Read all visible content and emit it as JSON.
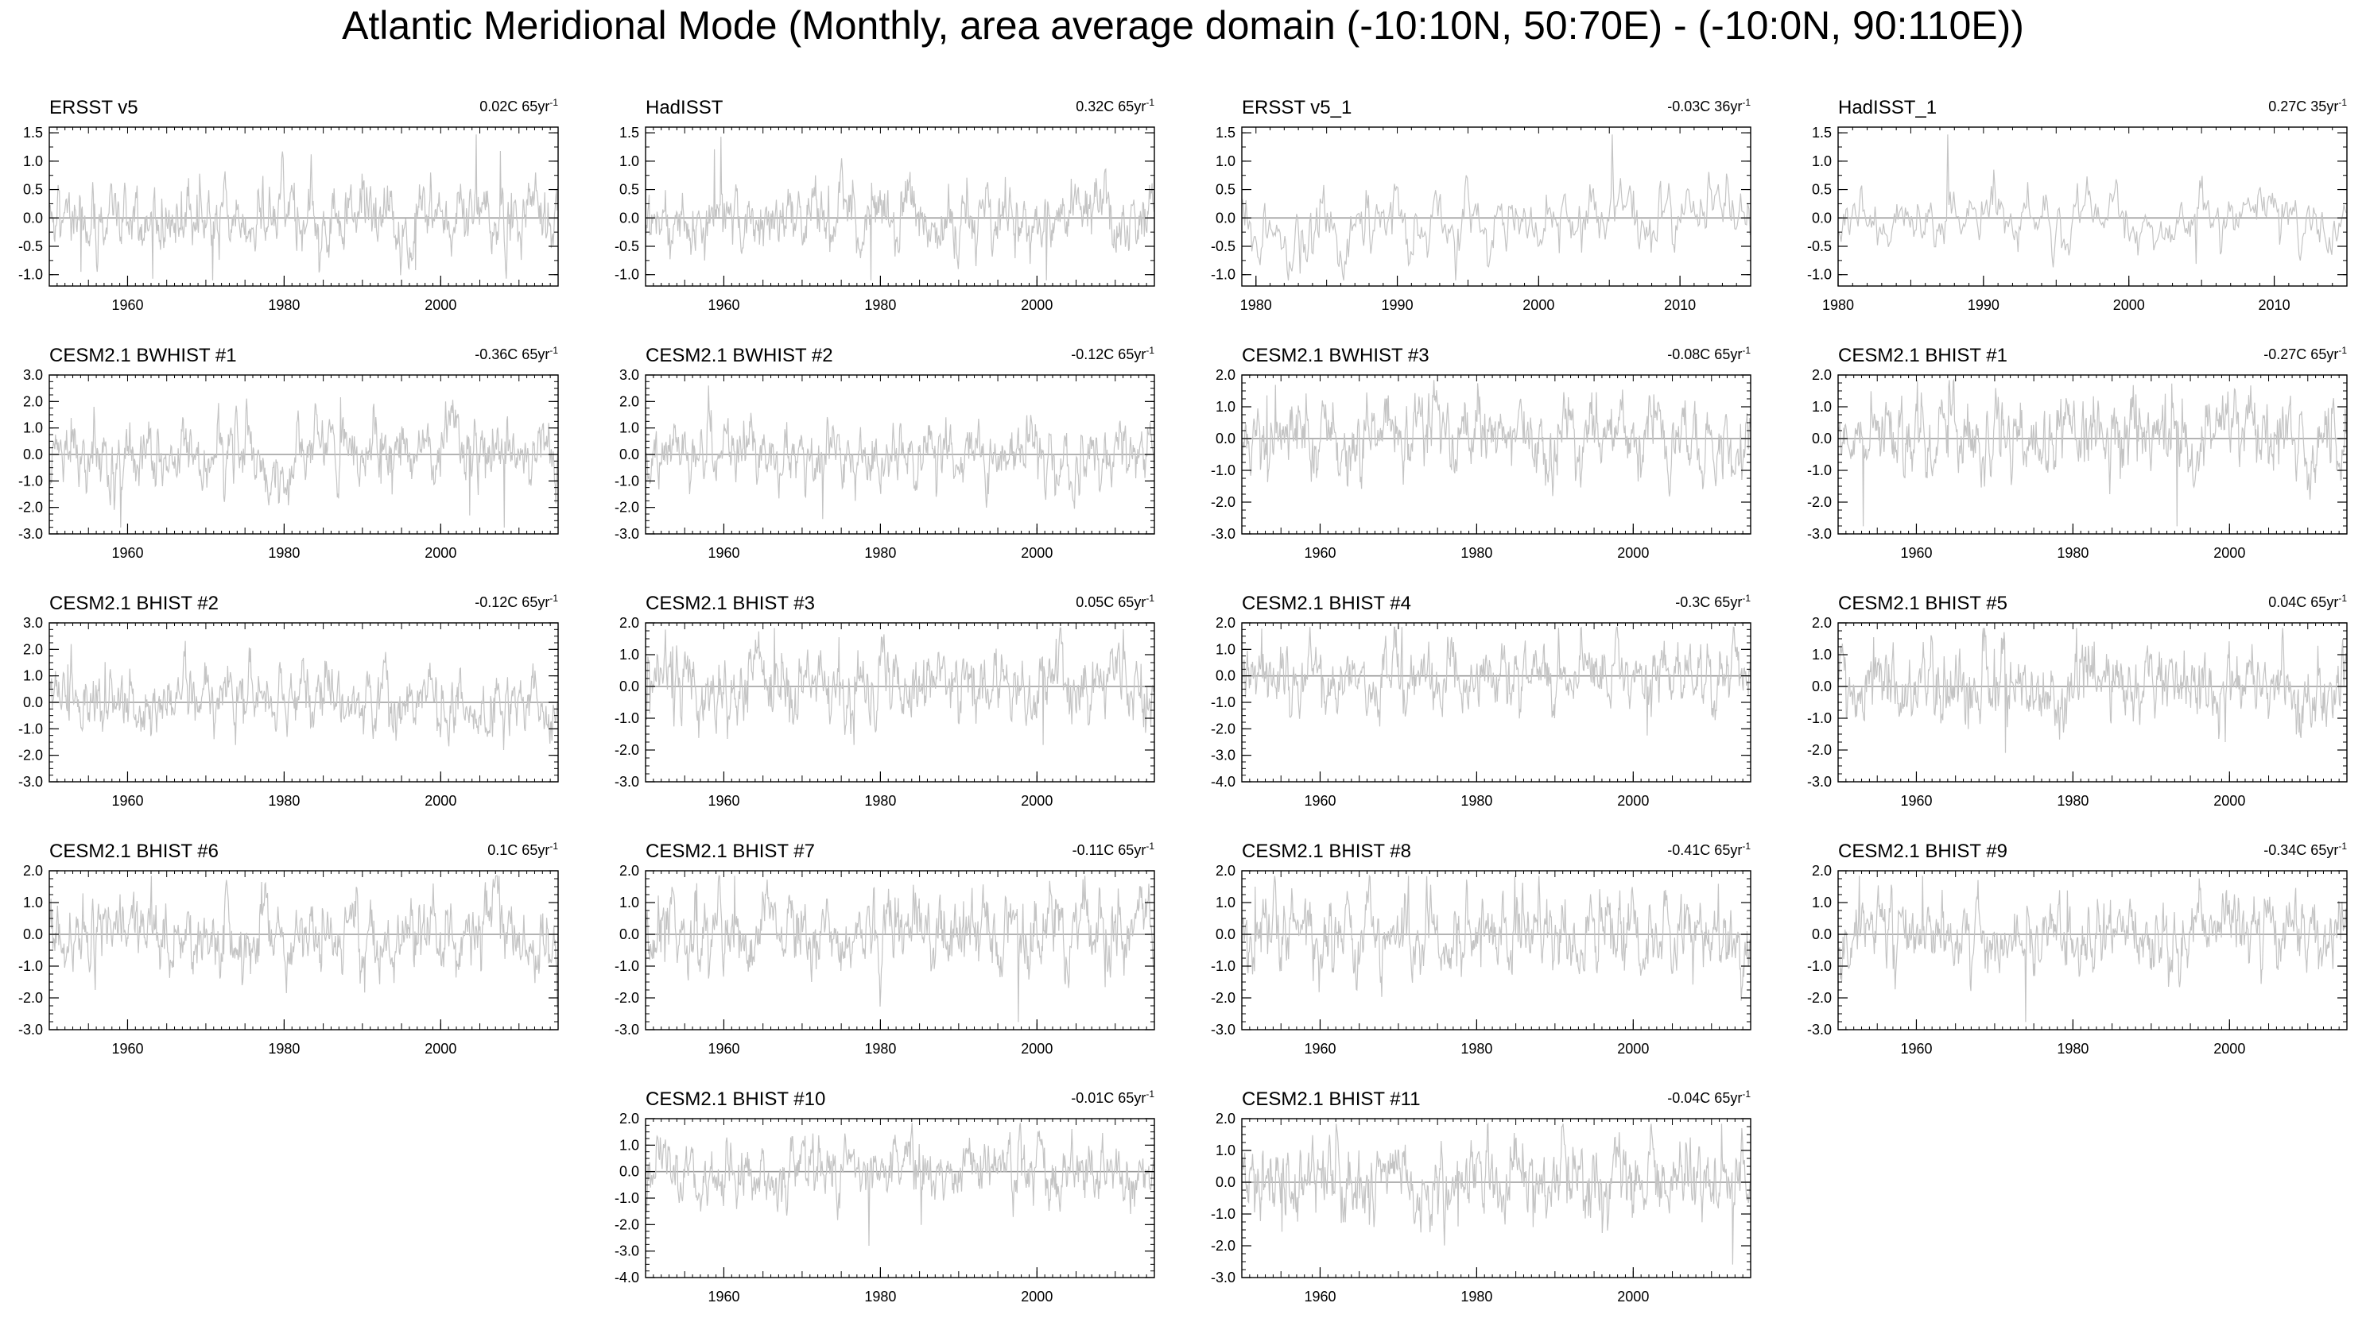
{
  "page": {
    "title": "Atlantic Meridional Mode (Monthly, area average domain (-10:10N, 50:70E) - (-10:0N, 90:110E))"
  },
  "chart_data": [
    {
      "type": "line",
      "title": "ERSST v5",
      "annotation": "0.02C 65yr",
      "annotation_sup": "-1",
      "xlim": [
        1950,
        2015
      ],
      "ylim": [
        -1.2,
        1.6
      ],
      "yticks": [
        -1.0,
        -0.5,
        0.0,
        0.5,
        1.0,
        1.5
      ],
      "xticks": [
        1960,
        1980,
        2000
      ],
      "seed": 11,
      "amp": 0.38,
      "series": [
        {
          "values": []
        }
      ]
    },
    {
      "type": "line",
      "title": "HadISST",
      "annotation": "0.32C 65yr",
      "annotation_sup": "-1",
      "xlim": [
        1950,
        2015
      ],
      "ylim": [
        -1.2,
        1.6
      ],
      "yticks": [
        -1.0,
        -0.5,
        0.0,
        0.5,
        1.0,
        1.5
      ],
      "xticks": [
        1960,
        1980,
        2000
      ],
      "seed": 12,
      "amp": 0.36,
      "series": [
        {
          "values": []
        }
      ]
    },
    {
      "type": "line",
      "title": "ERSST v5_1",
      "annotation": "-0.03C 36yr",
      "annotation_sup": "-1",
      "xlim": [
        1979,
        2015
      ],
      "ylim": [
        -1.2,
        1.6
      ],
      "yticks": [
        -1.0,
        -0.5,
        0.0,
        0.5,
        1.0,
        1.5
      ],
      "xticks": [
        1980,
        1990,
        2000,
        2010
      ],
      "seed": 13,
      "amp": 0.38,
      "series": [
        {
          "values": []
        }
      ]
    },
    {
      "type": "line",
      "title": "HadISST_1",
      "annotation": "0.27C 35yr",
      "annotation_sup": "-1",
      "xlim": [
        1980,
        2015
      ],
      "ylim": [
        -1.2,
        1.6
      ],
      "yticks": [
        -1.0,
        -0.5,
        0.0,
        0.5,
        1.0,
        1.5
      ],
      "xticks": [
        1980,
        1990,
        2000,
        2010
      ],
      "seed": 14,
      "amp": 0.3,
      "series": [
        {
          "values": []
        }
      ]
    },
    {
      "type": "line",
      "title": "CESM2.1 BWHIST #1",
      "annotation": "-0.36C 65yr",
      "annotation_sup": "-1",
      "xlim": [
        1950,
        2015
      ],
      "ylim": [
        -3.0,
        3.0
      ],
      "yticks": [
        -3.0,
        -2.0,
        -1.0,
        0.0,
        1.0,
        2.0,
        3.0
      ],
      "xticks": [
        1960,
        1980,
        2000
      ],
      "seed": 21,
      "amp": 0.75,
      "series": [
        {
          "values": []
        }
      ]
    },
    {
      "type": "line",
      "title": "CESM2.1 BWHIST #2",
      "annotation": "-0.12C 65yr",
      "annotation_sup": "-1",
      "xlim": [
        1950,
        2015
      ],
      "ylim": [
        -3.0,
        3.0
      ],
      "yticks": [
        -3.0,
        -2.0,
        -1.0,
        0.0,
        1.0,
        2.0,
        3.0
      ],
      "xticks": [
        1960,
        1980,
        2000
      ],
      "seed": 22,
      "amp": 0.75,
      "series": [
        {
          "values": []
        }
      ]
    },
    {
      "type": "line",
      "title": "CESM2.1 BWHIST #3",
      "annotation": "-0.08C 65yr",
      "annotation_sup": "-1",
      "xlim": [
        1950,
        2015
      ],
      "ylim": [
        -3.0,
        2.0
      ],
      "yticks": [
        -3.0,
        -2.0,
        -1.0,
        0.0,
        1.0,
        2.0
      ],
      "xticks": [
        1960,
        1980,
        2000
      ],
      "seed": 23,
      "amp": 0.7,
      "series": [
        {
          "values": []
        }
      ]
    },
    {
      "type": "line",
      "title": "CESM2.1 BHIST #1",
      "annotation": "-0.27C 65yr",
      "annotation_sup": "-1",
      "xlim": [
        1950,
        2015
      ],
      "ylim": [
        -3.0,
        2.0
      ],
      "yticks": [
        -3.0,
        -2.0,
        -1.0,
        0.0,
        1.0,
        2.0
      ],
      "xticks": [
        1960,
        1980,
        2000
      ],
      "seed": 24,
      "amp": 0.8,
      "series": [
        {
          "values": []
        }
      ]
    },
    {
      "type": "line",
      "title": "CESM2.1 BHIST #2",
      "annotation": "-0.12C 65yr",
      "annotation_sup": "-1",
      "xlim": [
        1950,
        2015
      ],
      "ylim": [
        -3.0,
        3.0
      ],
      "yticks": [
        -3.0,
        -2.0,
        -1.0,
        0.0,
        1.0,
        2.0,
        3.0
      ],
      "xticks": [
        1960,
        1980,
        2000
      ],
      "seed": 31,
      "amp": 0.75,
      "series": [
        {
          "values": []
        }
      ]
    },
    {
      "type": "line",
      "title": "CESM2.1 BHIST #3",
      "annotation": "0.05C 65yr",
      "annotation_sup": "-1",
      "xlim": [
        1950,
        2015
      ],
      "ylim": [
        -3.0,
        2.0
      ],
      "yticks": [
        -3.0,
        -2.0,
        -1.0,
        0.0,
        1.0,
        2.0
      ],
      "xticks": [
        1960,
        1980,
        2000
      ],
      "seed": 32,
      "amp": 0.75,
      "series": [
        {
          "values": []
        }
      ]
    },
    {
      "type": "line",
      "title": "CESM2.1 BHIST #4",
      "annotation": "-0.3C 65yr",
      "annotation_sup": "-1",
      "xlim": [
        1950,
        2015
      ],
      "ylim": [
        -4.0,
        2.0
      ],
      "yticks": [
        -4.0,
        -3.0,
        -2.0,
        -1.0,
        0.0,
        1.0,
        2.0
      ],
      "xticks": [
        1960,
        1980,
        2000
      ],
      "seed": 33,
      "amp": 0.75,
      "series": [
        {
          "values": []
        }
      ]
    },
    {
      "type": "line",
      "title": "CESM2.1 BHIST #5",
      "annotation": "0.04C 65yr",
      "annotation_sup": "-1",
      "xlim": [
        1950,
        2015
      ],
      "ylim": [
        -3.0,
        2.0
      ],
      "yticks": [
        -3.0,
        -2.0,
        -1.0,
        0.0,
        1.0,
        2.0
      ],
      "xticks": [
        1960,
        1980,
        2000
      ],
      "seed": 34,
      "amp": 0.75,
      "series": [
        {
          "values": []
        }
      ]
    },
    {
      "type": "line",
      "title": "CESM2.1 BHIST #6",
      "annotation": "0.1C 65yr",
      "annotation_sup": "-1",
      "xlim": [
        1950,
        2015
      ],
      "ylim": [
        -3.0,
        2.0
      ],
      "yticks": [
        -3.0,
        -2.0,
        -1.0,
        0.0,
        1.0,
        2.0
      ],
      "xticks": [
        1960,
        1980,
        2000
      ],
      "seed": 41,
      "amp": 0.7,
      "series": [
        {
          "values": []
        }
      ]
    },
    {
      "type": "line",
      "title": "CESM2.1 BHIST #7",
      "annotation": "-0.11C 65yr",
      "annotation_sup": "-1",
      "xlim": [
        1950,
        2015
      ],
      "ylim": [
        -3.0,
        2.0
      ],
      "yticks": [
        -3.0,
        -2.0,
        -1.0,
        0.0,
        1.0,
        2.0
      ],
      "xticks": [
        1960,
        1980,
        2000
      ],
      "seed": 42,
      "amp": 0.75,
      "series": [
        {
          "values": []
        }
      ]
    },
    {
      "type": "line",
      "title": "CESM2.1 BHIST #8",
      "annotation": "-0.41C 65yr",
      "annotation_sup": "-1",
      "xlim": [
        1950,
        2015
      ],
      "ylim": [
        -3.0,
        2.0
      ],
      "yticks": [
        -3.0,
        -2.0,
        -1.0,
        0.0,
        1.0,
        2.0
      ],
      "xticks": [
        1960,
        1980,
        2000
      ],
      "seed": 43,
      "amp": 0.75,
      "series": [
        {
          "values": []
        }
      ]
    },
    {
      "type": "line",
      "title": "CESM2.1 BHIST #9",
      "annotation": "-0.34C 65yr",
      "annotation_sup": "-1",
      "xlim": [
        1950,
        2015
      ],
      "ylim": [
        -3.0,
        2.0
      ],
      "yticks": [
        -3.0,
        -2.0,
        -1.0,
        0.0,
        1.0,
        2.0
      ],
      "xticks": [
        1960,
        1980,
        2000
      ],
      "seed": 44,
      "amp": 0.7,
      "series": [
        {
          "values": []
        }
      ]
    },
    {
      "type": "line",
      "title": "CESM2.1 BHIST #10",
      "annotation": "-0.01C 65yr",
      "annotation_sup": "-1",
      "xlim": [
        1950,
        2015
      ],
      "ylim": [
        -4.0,
        2.0
      ],
      "yticks": [
        -4.0,
        -3.0,
        -2.0,
        -1.0,
        0.0,
        1.0,
        2.0
      ],
      "xticks": [
        1960,
        1980,
        2000
      ],
      "seed": 51,
      "amp": 0.75,
      "series": [
        {
          "values": []
        }
      ]
    },
    {
      "type": "line",
      "title": "CESM2.1 BHIST #11",
      "annotation": "-0.04C 65yr",
      "annotation_sup": "-1",
      "xlim": [
        1950,
        2015
      ],
      "ylim": [
        -3.0,
        2.0
      ],
      "yticks": [
        -3.0,
        -2.0,
        -1.0,
        0.0,
        1.0,
        2.0
      ],
      "xticks": [
        1960,
        1980,
        2000
      ],
      "seed": 52,
      "amp": 0.75,
      "series": [
        {
          "values": []
        }
      ]
    }
  ],
  "colors": {
    "series_line": "#c4c4c4",
    "zero_line": "#9a9a9a",
    "axes": "#000000"
  }
}
